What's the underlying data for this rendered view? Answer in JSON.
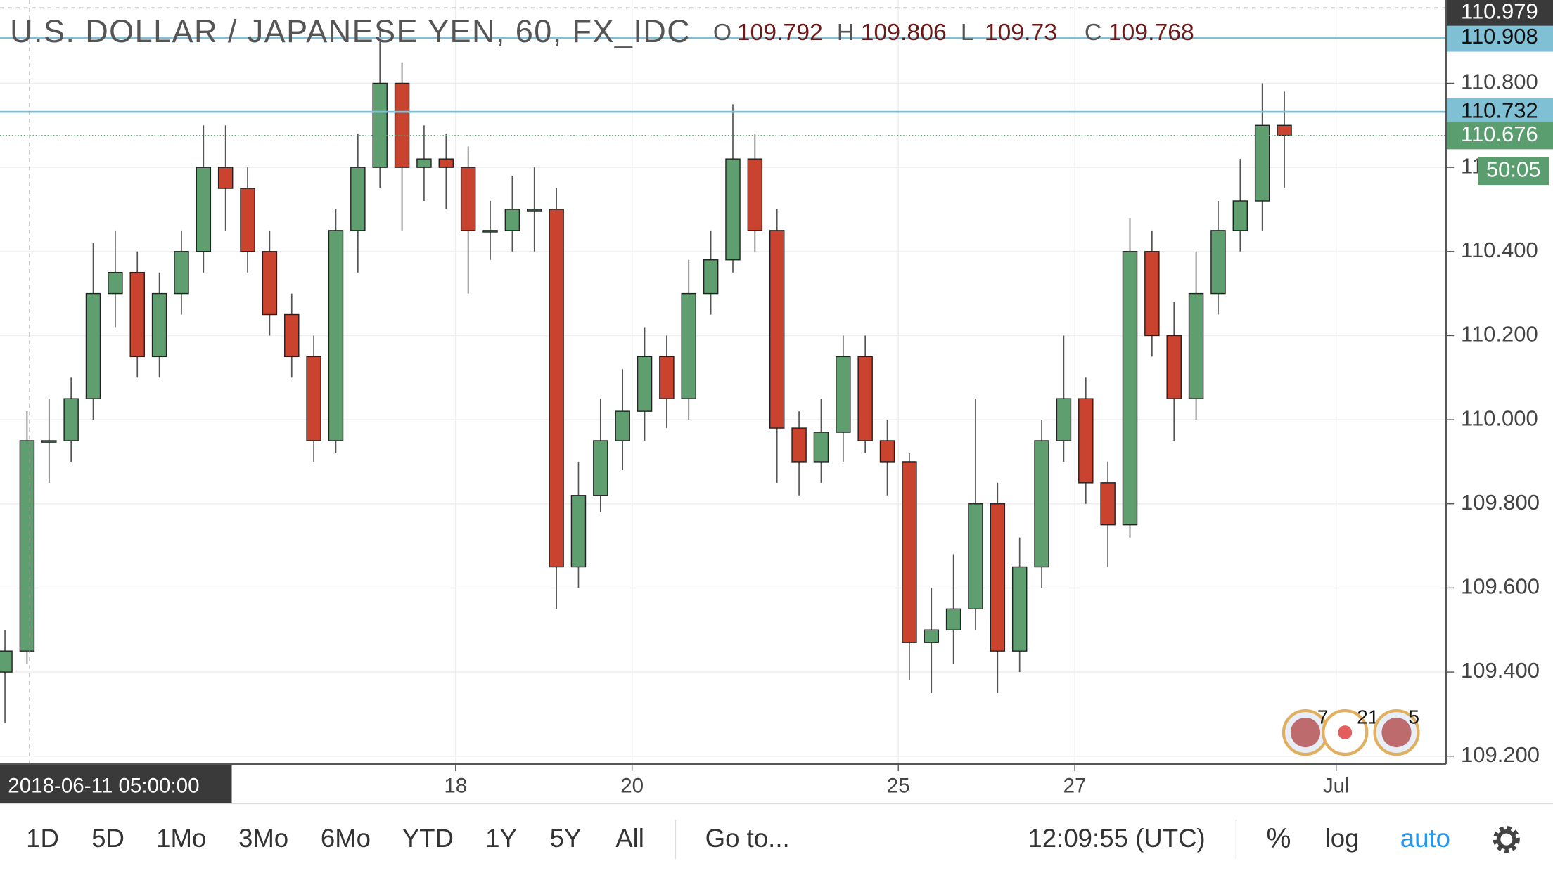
{
  "chart_data": {
    "type": "candlestick",
    "title": "U.S. DOLLAR / JAPANESE YEN, 60, FX_IDC",
    "ohlc": [
      {
        "label": "O",
        "value": 109.792
      },
      {
        "label": "H",
        "value": 109.806
      },
      {
        "label": "L",
        "value": 109.73
      },
      {
        "label": "C",
        "value": 109.768
      }
    ],
    "categories": [
      null,
      null,
      null,
      null,
      null,
      null,
      null,
      null,
      null,
      null,
      null,
      null,
      null,
      null,
      null,
      null,
      null,
      null,
      null,
      null,
      null,
      null,
      null,
      null,
      null,
      null,
      null,
      null,
      null,
      null,
      null,
      null,
      null,
      null,
      null,
      null,
      null,
      null,
      null,
      null,
      null,
      null,
      null,
      null,
      null,
      null,
      null,
      null,
      null,
      null,
      null,
      null,
      null,
      null,
      null,
      null,
      null,
      null,
      null
    ],
    "open": [
      109.4,
      109.45,
      109.95,
      109.95,
      110.05,
      110.3,
      110.35,
      110.15,
      110.3,
      110.4,
      110.6,
      110.55,
      110.4,
      110.25,
      110.15,
      109.95,
      110.45,
      110.6,
      110.8,
      110.6,
      110.62,
      110.6,
      110.45,
      110.45,
      110.5,
      110.5,
      109.65,
      109.82,
      109.95,
      110.02,
      110.15,
      110.05,
      110.3,
      110.38,
      110.62,
      110.45,
      109.98,
      109.9,
      109.97,
      110.15,
      109.95,
      109.9,
      109.47,
      109.5,
      109.55,
      109.8,
      109.45,
      109.65,
      109.95,
      110.05,
      109.85,
      109.75,
      110.4,
      110.2,
      110.05,
      110.3,
      110.45,
      110.52,
      110.7
    ],
    "high": [
      109.5,
      110.02,
      110.05,
      110.1,
      110.42,
      110.45,
      110.4,
      110.35,
      110.45,
      110.7,
      110.7,
      110.6,
      110.45,
      110.3,
      110.2,
      110.5,
      110.68,
      110.93,
      110.85,
      110.7,
      110.68,
      110.65,
      110.52,
      110.58,
      110.6,
      110.55,
      109.9,
      110.05,
      110.12,
      110.22,
      110.2,
      110.38,
      110.45,
      110.75,
      110.68,
      110.5,
      110.02,
      110.05,
      110.2,
      110.2,
      110.0,
      109.92,
      109.6,
      109.68,
      110.05,
      109.85,
      109.72,
      110.0,
      110.2,
      110.1,
      109.9,
      110.48,
      110.45,
      110.28,
      110.4,
      110.52,
      110.62,
      110.8,
      110.78
    ],
    "low": [
      109.28,
      109.42,
      109.85,
      109.9,
      110.0,
      110.22,
      110.1,
      110.1,
      110.25,
      110.35,
      110.45,
      110.35,
      110.2,
      110.1,
      109.9,
      109.92,
      110.35,
      110.55,
      110.45,
      110.52,
      110.5,
      110.3,
      110.38,
      110.4,
      110.4,
      109.55,
      109.6,
      109.78,
      109.88,
      109.95,
      109.98,
      110.0,
      110.25,
      110.35,
      110.4,
      109.85,
      109.82,
      109.85,
      109.9,
      109.92,
      109.82,
      109.38,
      109.35,
      109.42,
      109.5,
      109.35,
      109.4,
      109.6,
      109.9,
      109.8,
      109.65,
      109.72,
      110.15,
      109.95,
      110.0,
      110.25,
      110.4,
      110.45,
      110.55
    ],
    "close": [
      109.45,
      109.95,
      109.95,
      110.05,
      110.3,
      110.35,
      110.15,
      110.3,
      110.4,
      110.6,
      110.55,
      110.4,
      110.25,
      110.15,
      109.95,
      110.45,
      110.6,
      110.8,
      110.6,
      110.62,
      110.6,
      110.45,
      110.45,
      110.5,
      110.5,
      109.65,
      109.82,
      109.95,
      110.02,
      110.15,
      110.05,
      110.3,
      110.38,
      110.62,
      110.45,
      109.98,
      109.9,
      109.97,
      110.15,
      109.95,
      109.9,
      109.47,
      109.5,
      109.55,
      109.8,
      109.45,
      109.65,
      109.95,
      110.05,
      109.85,
      109.75,
      110.4,
      110.2,
      110.05,
      110.3,
      110.45,
      110.52,
      110.7,
      110.676
    ],
    "up_color": "#5f9e6e",
    "down_color": "#c9432f",
    "wick_color": "#555555",
    "xlim": [
      -0.225,
      65.33
    ],
    "xticks": [
      {
        "value": 20.43,
        "label": "18"
      },
      {
        "value": 28.43,
        "label": "20"
      },
      {
        "value": 40.5,
        "label": "25"
      },
      {
        "value": 48.5,
        "label": "27"
      },
      {
        "value": 60.35,
        "label": "Jul"
      }
    ],
    "ylim": [
      109.181,
      110.998
    ],
    "yticks": [
      {
        "value": 109.2,
        "label": "109.200"
      },
      {
        "value": 109.4,
        "label": "109.400"
      },
      {
        "value": 109.6,
        "label": "109.600"
      },
      {
        "value": 109.8,
        "label": "109.800"
      },
      {
        "value": 110.0,
        "label": "110.000"
      },
      {
        "value": 110.2,
        "label": "110.200"
      },
      {
        "value": 110.4,
        "label": "110.400"
      },
      {
        "value": 110.6,
        "label": "110.600"
      },
      {
        "value": 110.8,
        "label": "110.800"
      }
    ],
    "grid": true,
    "log_scale": false,
    "price_lines": [
      {
        "value": 110.908,
        "color": "#7fc0d4"
      },
      {
        "value": 110.732,
        "color": "#7fc0d4"
      }
    ],
    "last_price": 110.676,
    "last_price_color": "#5a9e6f",
    "countdown": "50:05",
    "crosshair": {
      "x": 1.12,
      "label": "2018-06-11 05:00:00",
      "price": 110.979
    },
    "event_counts": [
      7,
      21,
      5
    ]
  },
  "toolbar": {
    "ranges": [
      "1D",
      "5D",
      "1Mo",
      "3Mo",
      "6Mo",
      "YTD",
      "1Y",
      "5Y",
      "All"
    ],
    "goto": "Go to...",
    "clock": "12:09:55 (UTC)",
    "percent": "%",
    "log": "log",
    "auto": "auto"
  }
}
